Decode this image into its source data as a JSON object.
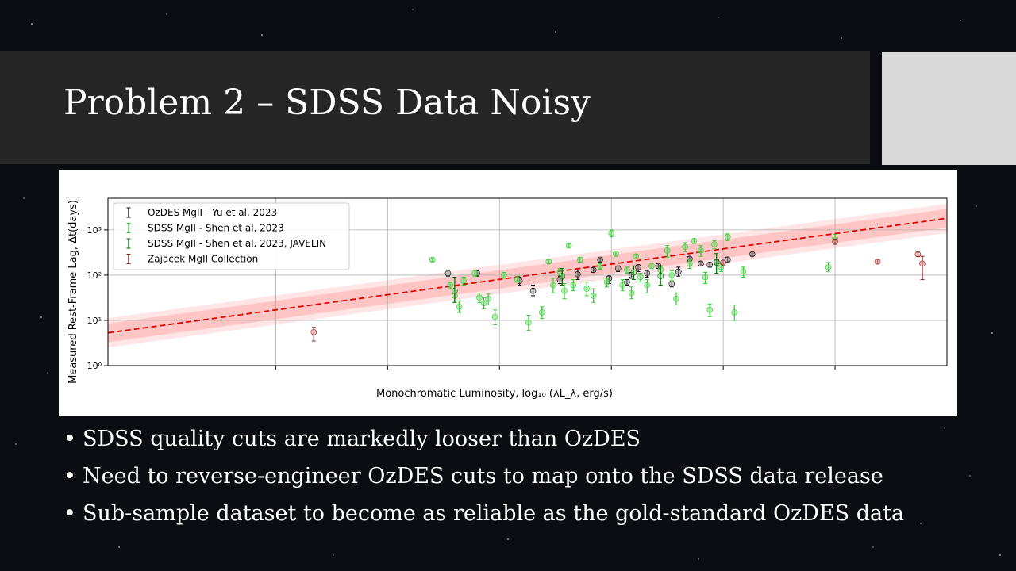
{
  "slide": {
    "title": "Problem 2 – SDSS Data Noisy",
    "bullet_glyph": "•",
    "bullets": [
      "SDSS quality cuts are markedly looser than OzDES",
      "Need to reverse-engineer OzDES cuts to map onto the SDSS data release",
      "Sub-sample dataset to become as reliable as the gold-standard OzDES data"
    ],
    "side_block_color": "#d9d9d9",
    "title_bar_color": "#262626"
  },
  "chart_data": {
    "type": "scatter",
    "xlabel": "Monochromatic Luminosity, log₁₀ (λL_λ, erg/s)",
    "ylabel": "Measured Rest-Frame Lag, Δt(days)",
    "y_scale": "log",
    "ylim": [
      1,
      5000
    ],
    "xlim": [
      41.25,
      45.0
    ],
    "x_tick_values": [
      42,
      42.5,
      43,
      43.5,
      44,
      44.5
    ],
    "x_tick_labels_visible": false,
    "y_ticks": [
      {
        "value": 1,
        "label": "10⁰"
      },
      {
        "value": 10,
        "label": "10¹"
      },
      {
        "value": 100,
        "label": "10²"
      },
      {
        "value": 1000,
        "label": "10³"
      }
    ],
    "grid": true,
    "legend_position": "top-left",
    "legend": [
      {
        "label": "OzDES MgII - Yu et al. 2023",
        "color": "#000000"
      },
      {
        "label": "SDSS MgII - Shen et al. 2023",
        "color": "#32cd32"
      },
      {
        "label": "SDSS MgII - Shen et al. 2023, JAVELIN",
        "color": "#006400"
      },
      {
        "label": "Zajacek MgII Collection",
        "color": "#8b1a1a"
      }
    ],
    "fit": {
      "style": "dashed",
      "color": "#dd0000",
      "y_at_xmin": 5.3,
      "y_at_xmax": 1800,
      "band_inner_factor": 1.6,
      "band_outer_factor": 2.1
    },
    "series": [
      {
        "name": "OzDES MgII - Yu et al. 2023",
        "color": "#000000",
        "points": [
          {
            "x": 42.77,
            "y": 110,
            "lo": 95,
            "hi": 130
          },
          {
            "x": 42.9,
            "y": 110,
            "lo": 95,
            "hi": 125
          },
          {
            "x": 43.09,
            "y": 75,
            "lo": 60,
            "hi": 90
          },
          {
            "x": 43.15,
            "y": 45,
            "lo": 35,
            "hi": 60
          },
          {
            "x": 43.27,
            "y": 80,
            "lo": 65,
            "hi": 95
          },
          {
            "x": 43.35,
            "y": 105,
            "lo": 80,
            "hi": 130
          },
          {
            "x": 43.42,
            "y": 130,
            "lo": 115,
            "hi": 145
          },
          {
            "x": 43.45,
            "y": 220,
            "lo": 200,
            "hi": 240
          },
          {
            "x": 43.49,
            "y": 85,
            "lo": 65,
            "hi": 95
          },
          {
            "x": 43.53,
            "y": 140,
            "lo": 120,
            "hi": 160
          },
          {
            "x": 43.57,
            "y": 70,
            "lo": 60,
            "hi": 80
          },
          {
            "x": 43.59,
            "y": 100,
            "lo": 85,
            "hi": 115
          },
          {
            "x": 43.62,
            "y": 150,
            "lo": 120,
            "hi": 170
          },
          {
            "x": 43.66,
            "y": 110,
            "lo": 90,
            "hi": 130
          },
          {
            "x": 43.71,
            "y": 160,
            "lo": 140,
            "hi": 180
          },
          {
            "x": 43.77,
            "y": 65,
            "lo": 55,
            "hi": 75
          },
          {
            "x": 43.8,
            "y": 120,
            "lo": 95,
            "hi": 150
          },
          {
            "x": 43.85,
            "y": 230,
            "lo": 205,
            "hi": 255
          },
          {
            "x": 43.9,
            "y": 180,
            "lo": 160,
            "hi": 200
          },
          {
            "x": 43.94,
            "y": 170,
            "lo": 150,
            "hi": 190
          },
          {
            "x": 43.97,
            "y": 200,
            "lo": 175,
            "hi": 225
          },
          {
            "x": 44.02,
            "y": 220,
            "lo": 190,
            "hi": 250
          },
          {
            "x": 44.13,
            "y": 290,
            "lo": 270,
            "hi": 310
          }
        ]
      },
      {
        "name": "SDSS MgII - Shen et al. 2023",
        "color": "#32cd32",
        "points": [
          {
            "x": 42.7,
            "y": 220,
            "lo": 200,
            "hi": 240
          },
          {
            "x": 42.78,
            "y": 60,
            "lo": 50,
            "hi": 70
          },
          {
            "x": 42.8,
            "y": 35,
            "lo": 25,
            "hi": 45
          },
          {
            "x": 42.82,
            "y": 20,
            "lo": 15,
            "hi": 27
          },
          {
            "x": 42.84,
            "y": 75,
            "lo": 60,
            "hi": 90
          },
          {
            "x": 42.89,
            "y": 110,
            "lo": 95,
            "hi": 125
          },
          {
            "x": 42.91,
            "y": 32,
            "lo": 25,
            "hi": 40
          },
          {
            "x": 42.93,
            "y": 24,
            "lo": 18,
            "hi": 32
          },
          {
            "x": 42.95,
            "y": 30,
            "lo": 22,
            "hi": 38
          },
          {
            "x": 42.98,
            "y": 12,
            "lo": 8,
            "hi": 17
          },
          {
            "x": 43.02,
            "y": 100,
            "lo": 85,
            "hi": 115
          },
          {
            "x": 43.08,
            "y": 80,
            "lo": 70,
            "hi": 95
          },
          {
            "x": 43.13,
            "y": 9,
            "lo": 6,
            "hi": 13
          },
          {
            "x": 43.19,
            "y": 15,
            "lo": 11,
            "hi": 20
          },
          {
            "x": 43.22,
            "y": 200,
            "lo": 180,
            "hi": 220
          },
          {
            "x": 43.24,
            "y": 60,
            "lo": 40,
            "hi": 85
          },
          {
            "x": 43.27,
            "y": 120,
            "lo": 100,
            "hi": 140
          },
          {
            "x": 43.29,
            "y": 45,
            "lo": 30,
            "hi": 65
          },
          {
            "x": 43.31,
            "y": 450,
            "lo": 410,
            "hi": 490
          },
          {
            "x": 43.33,
            "y": 60,
            "lo": 45,
            "hi": 80
          },
          {
            "x": 43.36,
            "y": 220,
            "lo": 195,
            "hi": 245
          },
          {
            "x": 43.39,
            "y": 50,
            "lo": 35,
            "hi": 70
          },
          {
            "x": 43.42,
            "y": 35,
            "lo": 25,
            "hi": 50
          },
          {
            "x": 43.45,
            "y": 160,
            "lo": 135,
            "hi": 185
          },
          {
            "x": 43.48,
            "y": 70,
            "lo": 55,
            "hi": 85
          },
          {
            "x": 43.5,
            "y": 850,
            "lo": 700,
            "hi": 1000
          },
          {
            "x": 43.52,
            "y": 300,
            "lo": 260,
            "hi": 340
          },
          {
            "x": 43.55,
            "y": 60,
            "lo": 45,
            "hi": 80
          },
          {
            "x": 43.57,
            "y": 130,
            "lo": 110,
            "hi": 150
          },
          {
            "x": 43.59,
            "y": 40,
            "lo": 30,
            "hi": 55
          },
          {
            "x": 43.61,
            "y": 260,
            "lo": 230,
            "hi": 290
          },
          {
            "x": 43.63,
            "y": 90,
            "lo": 70,
            "hi": 110
          },
          {
            "x": 43.66,
            "y": 60,
            "lo": 40,
            "hi": 80
          },
          {
            "x": 43.68,
            "y": 160,
            "lo": 140,
            "hi": 180
          },
          {
            "x": 43.72,
            "y": 130,
            "lo": 110,
            "hi": 150
          },
          {
            "x": 43.75,
            "y": 350,
            "lo": 250,
            "hi": 450
          },
          {
            "x": 43.77,
            "y": 100,
            "lo": 75,
            "hi": 125
          },
          {
            "x": 43.79,
            "y": 30,
            "lo": 22,
            "hi": 40
          },
          {
            "x": 43.83,
            "y": 420,
            "lo": 330,
            "hi": 520
          },
          {
            "x": 43.85,
            "y": 180,
            "lo": 140,
            "hi": 220
          },
          {
            "x": 43.87,
            "y": 570,
            "lo": 500,
            "hi": 640
          },
          {
            "x": 43.9,
            "y": 350,
            "lo": 260,
            "hi": 450
          },
          {
            "x": 43.92,
            "y": 90,
            "lo": 65,
            "hi": 115
          },
          {
            "x": 43.94,
            "y": 17,
            "lo": 12,
            "hi": 23
          },
          {
            "x": 43.96,
            "y": 480,
            "lo": 380,
            "hi": 580
          },
          {
            "x": 43.99,
            "y": 150,
            "lo": 120,
            "hi": 180
          },
          {
            "x": 44.02,
            "y": 700,
            "lo": 580,
            "hi": 820
          },
          {
            "x": 44.05,
            "y": 15,
            "lo": 10,
            "hi": 22
          },
          {
            "x": 44.09,
            "y": 120,
            "lo": 90,
            "hi": 150
          },
          {
            "x": 44.47,
            "y": 150,
            "lo": 120,
            "hi": 190
          },
          {
            "x": 44.5,
            "y": 650,
            "lo": 500,
            "hi": 800
          }
        ]
      },
      {
        "name": "SDSS MgII - Shen et al. 2023, JAVELIN",
        "color": "#006400",
        "points": [
          {
            "x": 42.8,
            "y": 45,
            "lo": 25,
            "hi": 90
          },
          {
            "x": 43.28,
            "y": 95,
            "lo": 60,
            "hi": 140
          },
          {
            "x": 43.6,
            "y": 115,
            "lo": 80,
            "hi": 160
          },
          {
            "x": 43.72,
            "y": 95,
            "lo": 60,
            "hi": 160
          },
          {
            "x": 43.97,
            "y": 190,
            "lo": 110,
            "hi": 300
          }
        ]
      },
      {
        "name": "Zajacek MgII Collection",
        "color": "#8b1a1a",
        "points": [
          {
            "x": 42.17,
            "y": 5.5,
            "lo": 3.5,
            "hi": 7
          },
          {
            "x": 44.0,
            "y": 190,
            "lo": 170,
            "hi": 210
          },
          {
            "x": 44.5,
            "y": 550,
            "lo": 480,
            "hi": 630
          },
          {
            "x": 44.69,
            "y": 200,
            "lo": 180,
            "hi": 220
          },
          {
            "x": 44.87,
            "y": 290,
            "lo": 260,
            "hi": 320
          },
          {
            "x": 44.89,
            "y": 180,
            "lo": 80,
            "hi": 260
          }
        ]
      }
    ]
  }
}
